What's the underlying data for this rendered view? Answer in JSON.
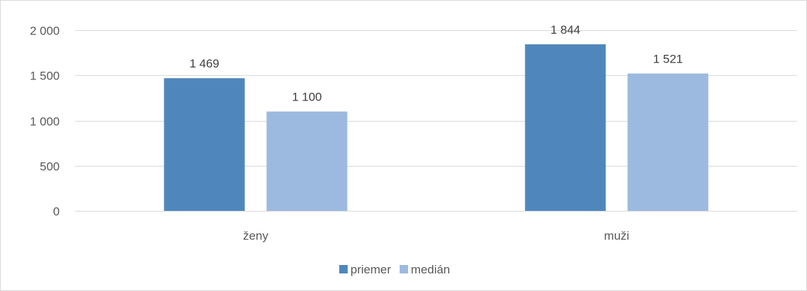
{
  "chart_data": {
    "type": "bar",
    "categories": [
      "ženy",
      "muži"
    ],
    "series": [
      {
        "name": "priemer",
        "values": [
          1469,
          1844
        ],
        "labels": [
          "1 469",
          "1 844"
        ],
        "color": "#4f87bc"
      },
      {
        "name": "medián",
        "values": [
          1100,
          1521
        ],
        "labels": [
          "1 100",
          "1 521"
        ],
        "color": "#9cbadf"
      }
    ],
    "ylim": [
      0,
      2000
    ],
    "yticks": [
      0,
      500,
      1000,
      1500,
      2000
    ],
    "ytick_labels": [
      "0",
      "500",
      "1 000",
      "1 500",
      "2 000"
    ],
    "grid": true,
    "gridline_color": "#d9d9d9",
    "legend_position": "bottom",
    "title": "",
    "xlabel": "",
    "ylabel": ""
  }
}
